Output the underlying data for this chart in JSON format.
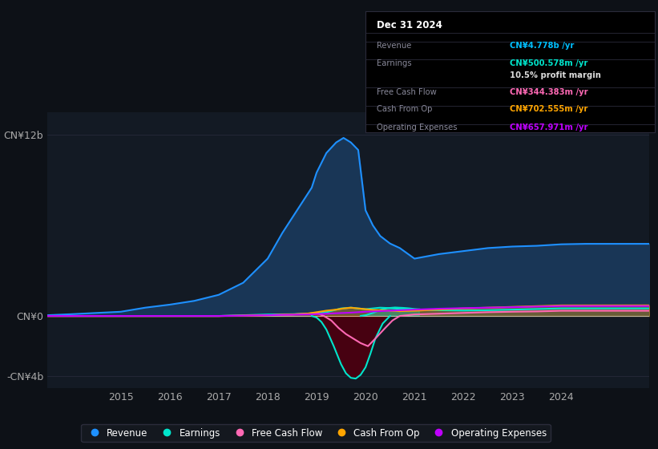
{
  "bg_color": "#0d1117",
  "title": "Dec 31 2024",
  "ylabel_top": "CN¥12b",
  "ylabel_zero": "CN¥0",
  "ylabel_bottom": "-CN¥4b",
  "xlim": [
    2013.5,
    2025.8
  ],
  "ylim": [
    -4.8,
    13.5
  ],
  "revenue_color": "#1e90ff",
  "earnings_color": "#00e5cc",
  "fcf_color": "#ff69b4",
  "cashfromop_color": "#ffa500",
  "opex_color": "#bf00ff",
  "legend_items": [
    {
      "label": "Revenue",
      "color": "#1e90ff"
    },
    {
      "label": "Earnings",
      "color": "#00e5cc"
    },
    {
      "label": "Free Cash Flow",
      "color": "#ff69b4"
    },
    {
      "label": "Cash From Op",
      "color": "#ffa500"
    },
    {
      "label": "Operating Expenses",
      "color": "#bf00ff"
    }
  ],
  "revenue_x": [
    2013.5,
    2014,
    2014.5,
    2015,
    2015.5,
    2016,
    2016.5,
    2017,
    2017.5,
    2018,
    2018.3,
    2018.6,
    2018.9,
    2019.0,
    2019.2,
    2019.4,
    2019.55,
    2019.7,
    2019.85,
    2020.0,
    2020.15,
    2020.3,
    2020.5,
    2020.7,
    2021.0,
    2021.5,
    2022,
    2022.5,
    2023,
    2023.5,
    2024,
    2024.5,
    2025.8
  ],
  "revenue_y": [
    0.05,
    0.12,
    0.2,
    0.28,
    0.55,
    0.75,
    1.0,
    1.4,
    2.2,
    3.8,
    5.5,
    7.0,
    8.5,
    9.5,
    10.8,
    11.5,
    11.8,
    11.5,
    11.0,
    7.0,
    6.0,
    5.3,
    4.8,
    4.5,
    3.8,
    4.1,
    4.3,
    4.5,
    4.6,
    4.65,
    4.75,
    4.78,
    4.78
  ],
  "earnings_x": [
    2013.5,
    2017,
    2017.5,
    2018,
    2018.5,
    2018.8,
    2019.0,
    2019.2,
    2019.5,
    2019.7,
    2019.85,
    2020.0,
    2020.15,
    2020.3,
    2020.5,
    2020.65,
    2020.8,
    2021.0,
    2021.5,
    2022,
    2022.5,
    2023,
    2023.5,
    2024,
    2025.8
  ],
  "earnings_y": [
    0.0,
    0.0,
    0.05,
    0.1,
    0.12,
    0.15,
    0.18,
    0.25,
    0.5,
    0.55,
    0.5,
    0.45,
    0.5,
    0.55,
    0.52,
    0.48,
    0.45,
    0.42,
    0.38,
    0.36,
    0.38,
    0.42,
    0.46,
    0.5,
    0.5
  ],
  "fcf_x": [
    2013.5,
    2017,
    2017.5,
    2018,
    2018.5,
    2018.8,
    2019.0,
    2019.15,
    2019.3,
    2019.45,
    2019.6,
    2019.75,
    2019.9,
    2020.05,
    2020.2,
    2020.4,
    2020.55,
    2020.7,
    2021.0,
    2021.5,
    2022,
    2022.5,
    2023,
    2023.5,
    2024,
    2025.8
  ],
  "fcf_y": [
    0.0,
    0.0,
    0.02,
    0.05,
    0.1,
    0.15,
    0.2,
    0.0,
    -0.3,
    -0.8,
    -1.2,
    -1.5,
    -1.8,
    -2.0,
    -1.5,
    -0.8,
    -0.3,
    0.0,
    0.1,
    0.15,
    0.2,
    0.25,
    0.28,
    0.3,
    0.344,
    0.344
  ],
  "cashfromop_x": [
    2013.5,
    2017,
    2017.5,
    2018,
    2018.5,
    2018.8,
    2019.0,
    2019.2,
    2019.4,
    2019.55,
    2019.7,
    2019.85,
    2020.0,
    2020.15,
    2020.3,
    2020.5,
    2020.7,
    2021.0,
    2021.5,
    2022,
    2022.5,
    2023,
    2023.5,
    2024,
    2025.8
  ],
  "cashfromop_y": [
    0.0,
    0.0,
    0.02,
    0.05,
    0.1,
    0.15,
    0.25,
    0.35,
    0.42,
    0.5,
    0.55,
    0.5,
    0.45,
    0.4,
    0.38,
    0.35,
    0.32,
    0.35,
    0.42,
    0.5,
    0.55,
    0.6,
    0.65,
    0.7,
    0.703
  ],
  "opex_x": [
    2013.5,
    2017,
    2017.5,
    2018,
    2018.5,
    2018.8,
    2019.0,
    2019.2,
    2019.4,
    2019.55,
    2019.7,
    2019.85,
    2020.0,
    2020.15,
    2020.3,
    2020.5,
    2020.7,
    2021.0,
    2021.5,
    2022,
    2022.5,
    2023,
    2023.5,
    2024,
    2025.8
  ],
  "opex_y": [
    0.0,
    0.0,
    0.02,
    0.05,
    0.08,
    0.1,
    0.12,
    0.15,
    0.18,
    0.2,
    0.22,
    0.25,
    0.28,
    0.3,
    0.32,
    0.35,
    0.38,
    0.42,
    0.48,
    0.52,
    0.55,
    0.58,
    0.62,
    0.658,
    0.658
  ],
  "earnings_neg_x": [
    2018.9,
    2019.0,
    2019.1,
    2019.2,
    2019.35,
    2019.5,
    2019.6,
    2019.7,
    2019.8,
    2019.9,
    2020.0,
    2020.1,
    2020.2,
    2020.35,
    2020.5,
    2020.5,
    2018.9
  ],
  "earnings_neg_y": [
    0.0,
    -0.1,
    -0.4,
    -0.9,
    -2.0,
    -3.2,
    -3.8,
    -4.1,
    -4.15,
    -3.9,
    -3.4,
    -2.5,
    -1.5,
    -0.5,
    0.0,
    0.0,
    0.0
  ],
  "table_rows": [
    {
      "label": "Revenue",
      "value": "CN¥4.778b /yr",
      "value_color": "#00bfff"
    },
    {
      "label": "Earnings",
      "value": "CN¥500.578m /yr",
      "value_color": "#00e5cc"
    },
    {
      "label": "",
      "value": "10.5% profit margin",
      "value_color": "#dddddd"
    },
    {
      "label": "Free Cash Flow",
      "value": "CN¥344.383m /yr",
      "value_color": "#ff69b4"
    },
    {
      "label": "Cash From Op",
      "value": "CN¥702.555m /yr",
      "value_color": "#ffa500"
    },
    {
      "label": "Operating Expenses",
      "value": "CN¥657.971m /yr",
      "value_color": "#bf00ff"
    }
  ]
}
